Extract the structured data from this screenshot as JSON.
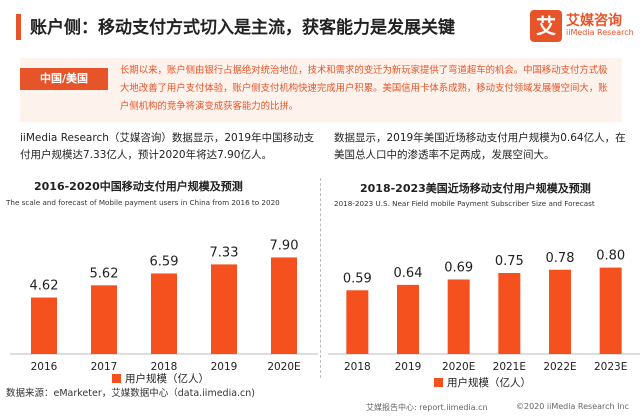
{
  "header": {
    "title": "账户侧：移动支付方式切入是主流，获客能力是发展关键",
    "logo_mark": "艾",
    "logo_cn": "艾媒咨询",
    "logo_en": "iiMedia Research"
  },
  "summary": {
    "tag": "中国/美国",
    "text": "长期以来，账户侧由银行占据绝对统治地位，技术和需求的变迁为新玩家提供了弯道超车的机会。中国移动支付方式极大地改善了用户支付体验，账户侧支付机构快速完成用户积累。美国信用卡体系成熟，移动支付领域发展慢空间大，账户侧机构的竞争将演变成获客能力的比拼。"
  },
  "left": {
    "text": "iiMedia Research（艾媒咨询）数据显示，2019年中国移动支付用户规模达7.33亿人，预计2020年将达7.90亿人。",
    "title": "2016-2020中国移动支付用户规模及预测",
    "subtitle": "The scale and forecast of Mobile payment users in China from 2016 to 2020"
  },
  "right": {
    "text": "数据显示，2019年美国近场移动支付用户规模为0.64亿人，在美国总人口中的渗透率不足两成，发展空间大。",
    "title": "2018-2023美国近场移动支付用户规模及预测",
    "subtitle": "2018-2023 U.S. Near Field mobile Payment Subscriber Size and Forecast"
  },
  "chart_data": [
    {
      "type": "bar",
      "title": "2016-2020中国移动支付用户规模及预测",
      "subtitle": "The scale and forecast of Mobile payment users in China from 2016 to 2020",
      "categories": [
        "2016",
        "2017",
        "2018",
        "2019",
        "2020E"
      ],
      "series": [
        {
          "name": "用户规模（亿人）",
          "values": [
            4.62,
            5.62,
            6.59,
            7.33,
            7.9
          ]
        }
      ],
      "value_labels": [
        "4.62",
        "5.62",
        "6.59",
        "7.33",
        "7.90"
      ],
      "ylim": [
        0,
        9
      ],
      "grid": false,
      "legend": "bottom",
      "color": "#f4511e"
    },
    {
      "type": "bar",
      "title": "2018-2023美国近场移动支付用户规模及预测",
      "subtitle": "2018-2023 U.S. Near Field mobile Payment Subscriber Size and Forecast",
      "categories": [
        "2018",
        "2019",
        "2020E",
        "2021E",
        "2022E",
        "2023E"
      ],
      "series": [
        {
          "name": "用户规模（亿人）",
          "values": [
            0.59,
            0.64,
            0.69,
            0.75,
            0.78,
            0.8
          ]
        }
      ],
      "value_labels": [
        "0.59",
        "0.64",
        "0.69",
        "0.75",
        "0.78",
        "0.80"
      ],
      "ylim": [
        0,
        1.0
      ],
      "grid": false,
      "legend": "bottom",
      "color": "#f4511e"
    }
  ],
  "footer": {
    "source": "数据来源：eMarketer，艾媒数据中心（data.iimedia.cn)",
    "left": "艾媒报告中心: report.iimedia.cn",
    "right": "©2020  iiMedia Research  Inc"
  }
}
